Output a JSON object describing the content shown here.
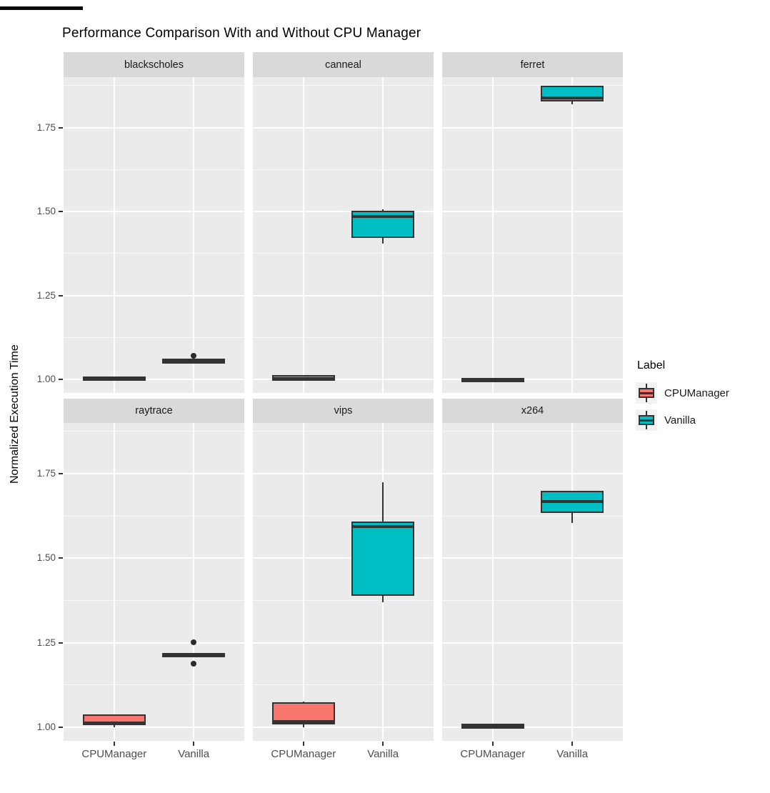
{
  "chart_data": {
    "type": "boxplot",
    "title": "Performance Comparison With and Without CPU Manager",
    "ylabel": "Normalized Execution Time",
    "xlabel": "",
    "ylim": [
      0.96,
      1.9
    ],
    "y_ticks": [
      "1.00",
      "1.25",
      "1.50",
      "1.75"
    ],
    "y_tick_values": [
      1.0,
      1.25,
      1.5,
      1.75
    ],
    "y_minor_values": [
      1.125,
      1.375,
      1.625,
      1.875
    ],
    "grid": "on",
    "categories": [
      "CPUManager",
      "Vanilla"
    ],
    "series": [
      {
        "name": "CPUManager",
        "color": "#F8766D"
      },
      {
        "name": "Vanilla",
        "color": "#00BFC4"
      }
    ],
    "legend": {
      "title": "Label",
      "position": "right",
      "entries": [
        {
          "label": "CPUManager",
          "color": "#F8766D"
        },
        {
          "label": "Vanilla",
          "color": "#00BFC4"
        }
      ]
    },
    "facets": [
      {
        "name": "blackscholes",
        "boxes": [
          {
            "category": "CPUManager",
            "min": 0.999,
            "q1": 1.0,
            "median": 1.002,
            "q3": 1.004,
            "max": 1.005,
            "outliers": []
          },
          {
            "category": "Vanilla",
            "min": 1.049,
            "q1": 1.051,
            "median": 1.054,
            "q3": 1.057,
            "max": 1.058,
            "outliers": [
              1.071
            ]
          }
        ]
      },
      {
        "name": "canneal",
        "boxes": [
          {
            "category": "CPUManager",
            "min": 0.998,
            "q1": 1.0,
            "median": 1.002,
            "q3": 1.008,
            "max": 1.01,
            "outliers": []
          },
          {
            "category": "Vanilla",
            "min": 1.405,
            "q1": 1.426,
            "median": 1.486,
            "q3": 1.497,
            "max": 1.507,
            "outliers": []
          }
        ]
      },
      {
        "name": "ferret",
        "boxes": [
          {
            "category": "CPUManager",
            "min": 0.997,
            "q1": 0.999,
            "median": 1.0,
            "q3": 1.001,
            "max": 1.003,
            "outliers": []
          },
          {
            "category": "Vanilla",
            "min": 1.82,
            "q1": 1.832,
            "median": 1.838,
            "q3": 1.87,
            "max": 1.87,
            "outliers": []
          }
        ]
      },
      {
        "name": "raytrace",
        "boxes": [
          {
            "category": "CPUManager",
            "min": 1.0,
            "q1": 1.01,
            "median": 1.013,
            "q3": 1.034,
            "max": 1.036,
            "outliers": []
          },
          {
            "category": "Vanilla",
            "min": 1.212,
            "q1": 1.212,
            "median": 1.213,
            "q3": 1.215,
            "max": 1.215,
            "outliers": [
              1.252,
              1.188
            ]
          }
        ]
      },
      {
        "name": "vips",
        "boxes": [
          {
            "category": "CPUManager",
            "min": 1.0,
            "q1": 1.013,
            "median": 1.018,
            "q3": 1.07,
            "max": 1.076,
            "outliers": []
          },
          {
            "category": "Vanilla",
            "min": 1.37,
            "q1": 1.393,
            "median": 1.594,
            "q3": 1.605,
            "max": 1.725,
            "outliers": []
          }
        ]
      },
      {
        "name": "x264",
        "boxes": [
          {
            "category": "CPUManager",
            "min": 0.999,
            "q1": 1.001,
            "median": 1.003,
            "q3": 1.006,
            "max": 1.008,
            "outliers": []
          },
          {
            "category": "Vanilla",
            "min": 1.604,
            "q1": 1.638,
            "median": 1.668,
            "q3": 1.696,
            "max": 1.699,
            "outliers": []
          }
        ]
      }
    ],
    "colors": {
      "panel_background": "#EBEBEB",
      "strip_background": "#D9D9D9",
      "gridline": "#FFFFFF",
      "box_outline": "#333333",
      "axis_text": "#4D4D4D",
      "strip_text": "#1A1A1A",
      "title_text": "#000000",
      "legend_key_background": "#F2F2F2"
    }
  },
  "decorations": {
    "top_left_artifact_color": "#0A0A0A"
  }
}
